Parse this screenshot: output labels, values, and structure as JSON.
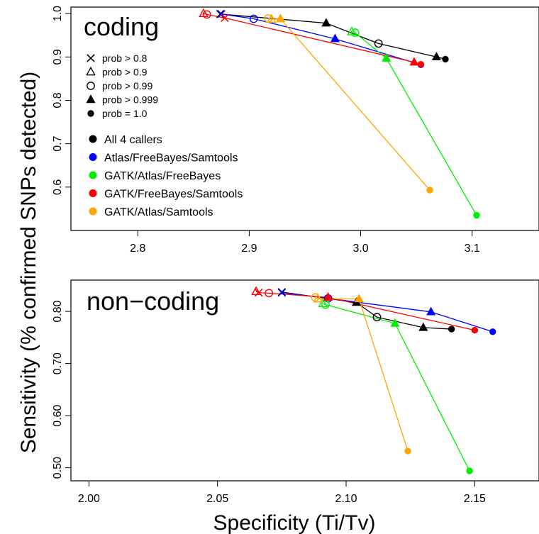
{
  "chart_data": [
    {
      "type": "line",
      "panel_label": "coding",
      "xlim": [
        2.74,
        3.16
      ],
      "ylim": [
        0.5,
        1.015
      ],
      "xticks": [
        "2.8",
        "2.9",
        "3.0",
        "3.1"
      ],
      "yticks": [
        "0.6",
        "0.7",
        "0.8",
        "0.9",
        "1.0"
      ],
      "legend_markers": [
        "prob > 0.8",
        "prob > 0.9",
        "prob > 0.99",
        "prob > 0.999",
        "prob = 1.0"
      ],
      "legend_series": [
        "All 4 callers",
        "Atlas/FreeBayes/Samtools",
        "GATK/Atlas/FreeBayes",
        "GATK/FreeBayes/Samtools",
        "GATK/Atlas/Samtools"
      ],
      "legend_placement": "top-left",
      "series": [
        {
          "name": "All 4 callers",
          "color": "#000000",
          "x": [
            2.874,
            2.969,
            3.016,
            3.068,
            3.076
          ],
          "y": [
            0.999,
            0.978,
            0.931,
            0.9,
            0.895
          ]
        },
        {
          "name": "Atlas/FreeBayes/Samtools",
          "color": "#0000ff",
          "x": [
            2.875,
            2.904,
            2.977,
            3.054
          ],
          "y": [
            0.999,
            0.988,
            0.942,
            0.882
          ]
        },
        {
          "name": "GATK/Atlas/FreeBayes",
          "color": "#00ee00",
          "x": [
            2.992,
            2.995,
            3.023,
            3.104
          ],
          "y": [
            0.958,
            0.956,
            0.897,
            0.535
          ]
        },
        {
          "name": "GATK/FreeBayes/Samtools",
          "color": "#ff0000",
          "x": [
            2.859,
            2.862,
            2.878,
            3.048,
            3.054
          ],
          "y": [
            1.0,
            0.998,
            0.99,
            0.888,
            0.883
          ]
        },
        {
          "name": "GATK/Atlas/Samtools",
          "color": "#ffa500",
          "x": [
            2.917,
            2.92,
            2.928,
            3.062
          ],
          "y": [
            0.989,
            0.987,
            0.988,
            0.593
          ]
        }
      ]
    },
    {
      "type": "line",
      "panel_label": "non−coding",
      "xlim": [
        1.993,
        2.175
      ],
      "ylim": [
        0.475,
        0.86
      ],
      "xticks": [
        "2.00",
        "2.05",
        "2.10",
        "2.15"
      ],
      "yticks": [
        "0.50",
        "0.60",
        "0.70",
        "0.80"
      ],
      "series": [
        {
          "name": "All 4 callers",
          "color": "#000000",
          "x": [
            2.075,
            2.104,
            2.112,
            2.13,
            2.141
          ],
          "y": [
            0.837,
            0.817,
            0.789,
            0.769,
            0.766
          ]
        },
        {
          "name": "Atlas/FreeBayes/Samtools",
          "color": "#0000ff",
          "x": [
            2.075,
            2.093,
            2.133,
            2.157
          ],
          "y": [
            0.836,
            0.825,
            0.799,
            0.761
          ]
        },
        {
          "name": "GATK/Atlas/FreeBayes",
          "color": "#00ee00",
          "x": [
            2.091,
            2.092,
            2.119,
            2.148
          ],
          "y": [
            0.815,
            0.813,
            0.777,
            0.494
          ]
        },
        {
          "name": "GATK/FreeBayes/Samtools",
          "color": "#ff0000",
          "x": [
            2.065,
            2.066,
            2.07,
            2.093,
            2.15
          ],
          "y": [
            0.838,
            0.836,
            0.835,
            0.827,
            0.764
          ]
        },
        {
          "name": "GATK/Atlas/Samtools",
          "color": "#ffa500",
          "x": [
            2.088,
            2.089,
            2.105,
            2.124
          ],
          "y": [
            0.827,
            0.824,
            0.824,
            0.532
          ]
        }
      ]
    }
  ],
  "axes": {
    "ylabel": "Sensitivity (% confirmed SNPs detected)",
    "xlabel": "Specificity (Ti/Tv)"
  },
  "marker_icons": [
    "cross-icon",
    "open-triangle-icon",
    "open-circle-icon",
    "filled-triangle-icon",
    "filled-circle-icon"
  ]
}
